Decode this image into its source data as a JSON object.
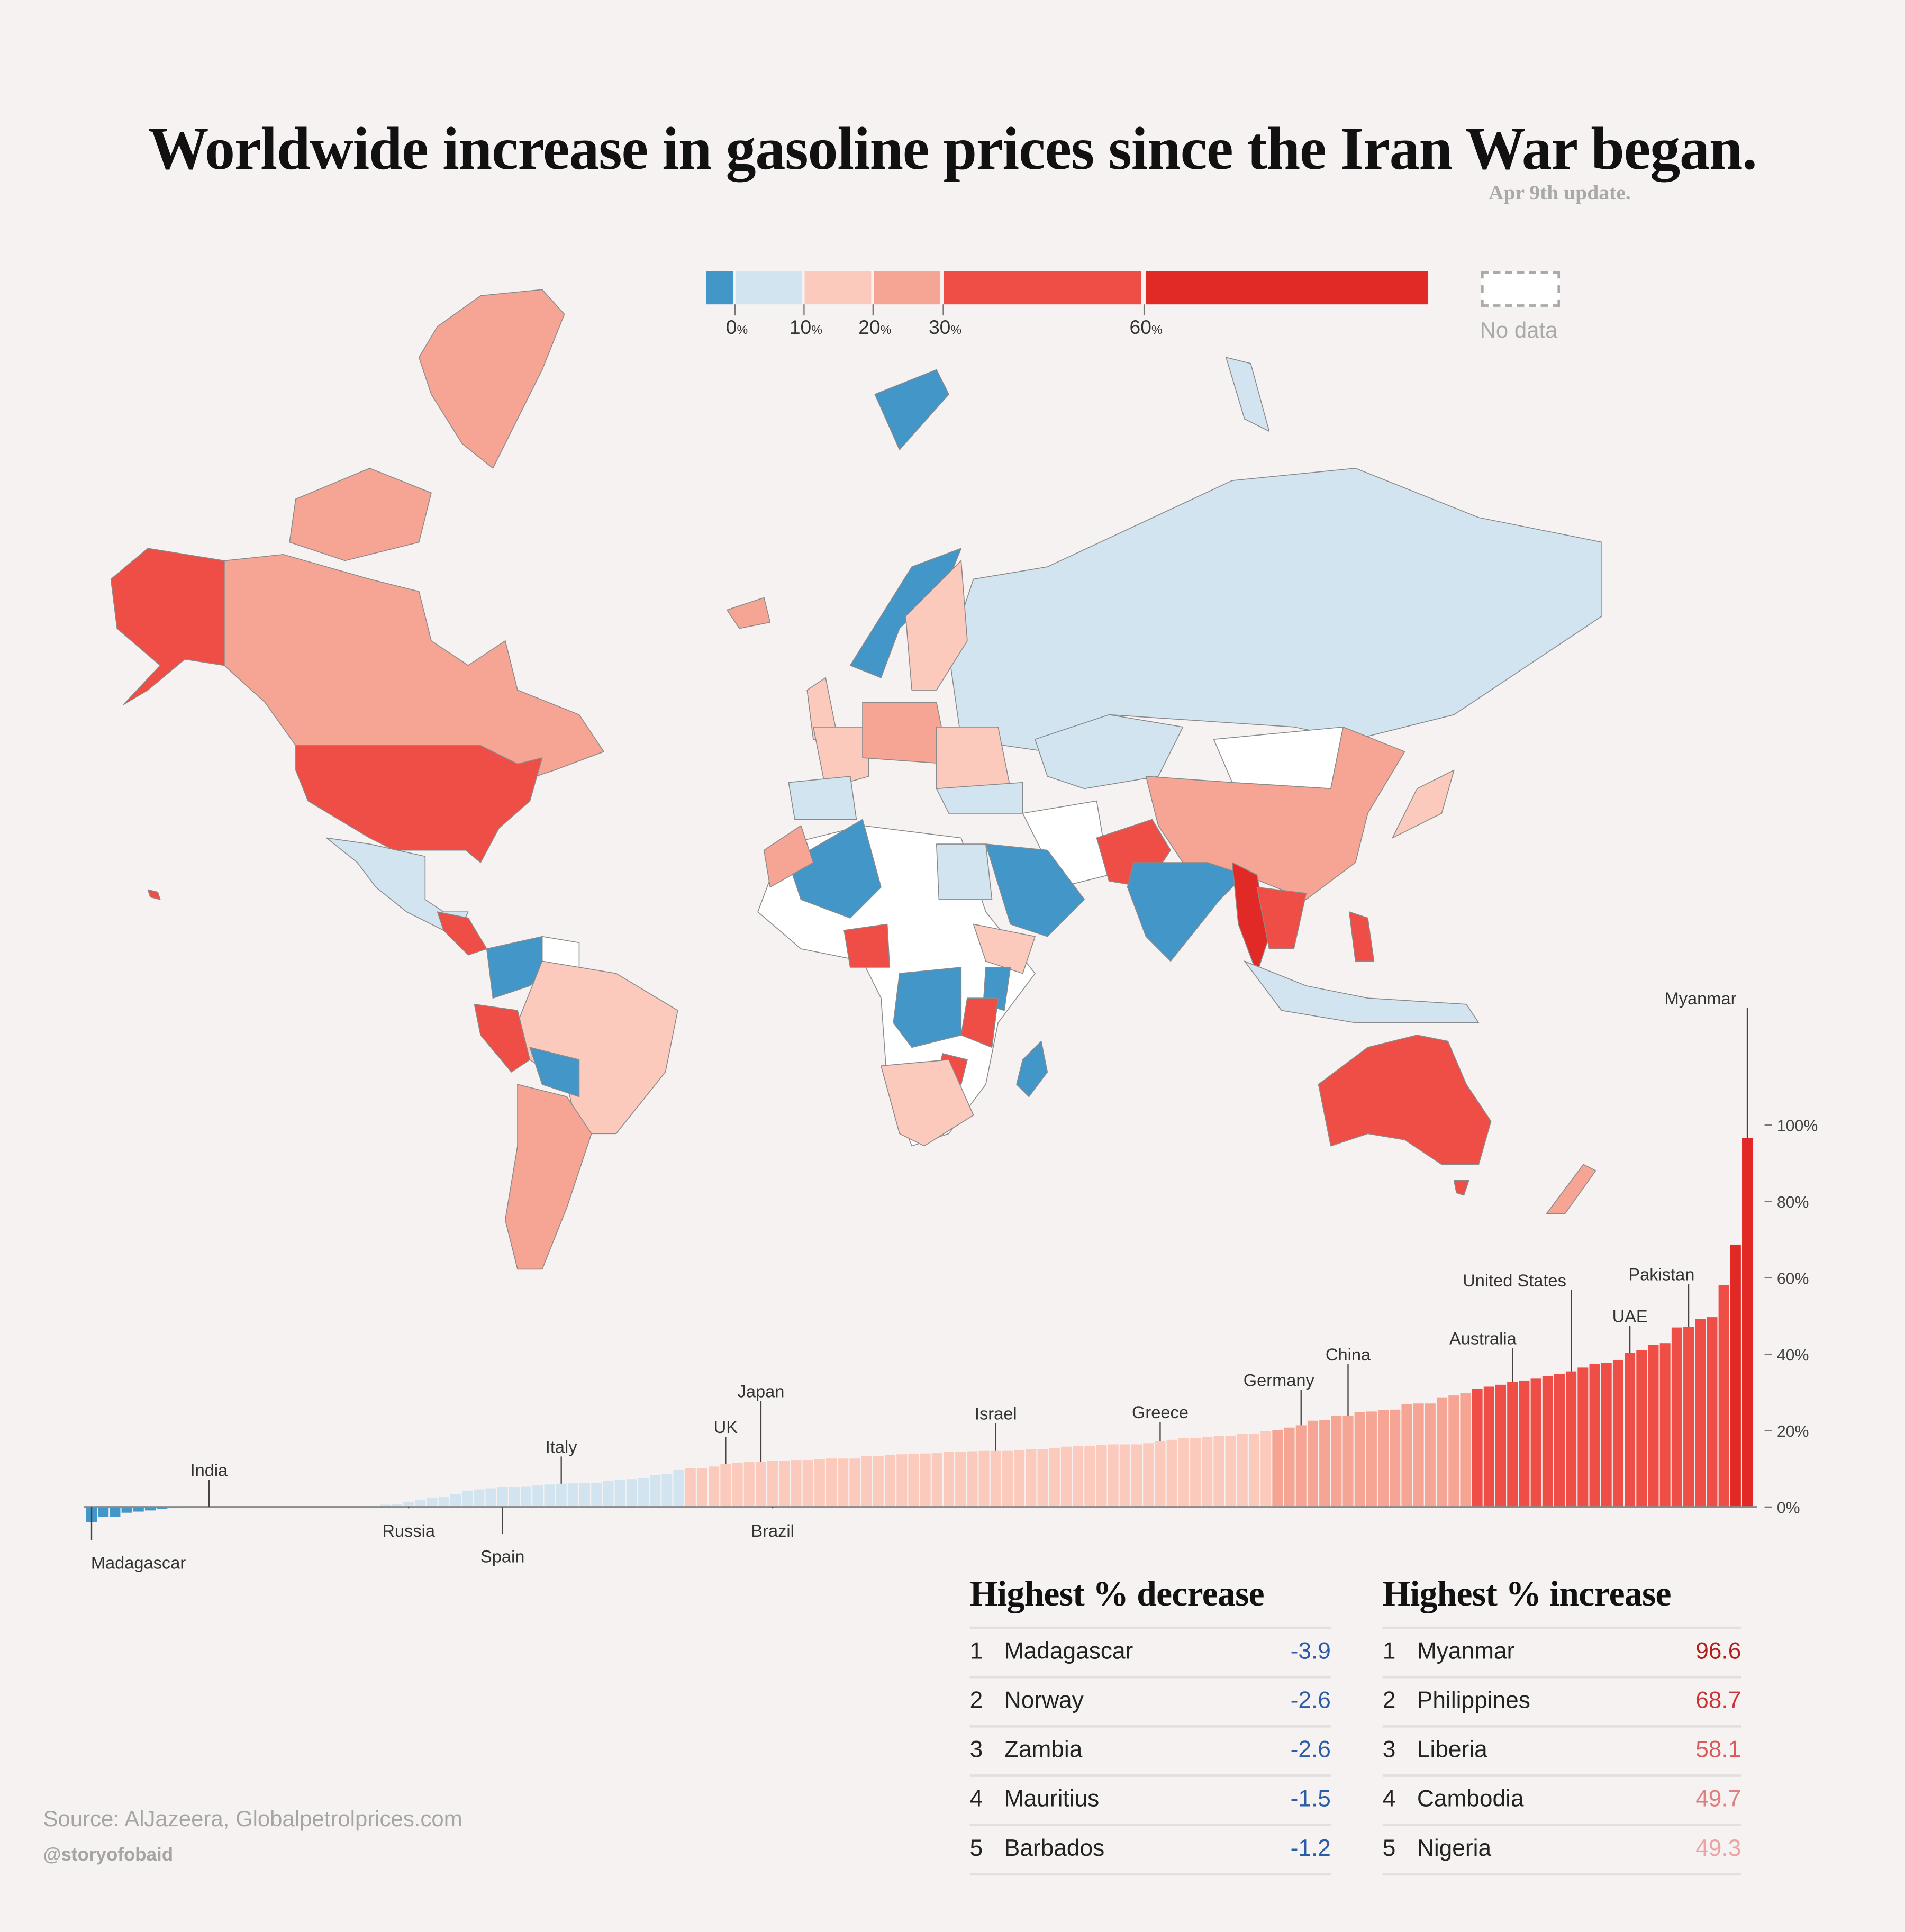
{
  "title": "Worldwide increase in gasoline prices since the Iran War began.",
  "subtitle": "Apr 9th update.",
  "legend": {
    "bins": [
      {
        "color": "#4396c8"
      },
      {
        "color": "#d1e4ef"
      },
      {
        "color": "#fbcabc"
      },
      {
        "color": "#f6a493"
      },
      {
        "color": "#ee4e45"
      },
      {
        "color": "#e12a25"
      }
    ],
    "ticks": [
      "0",
      "10",
      "20",
      "30",
      "60"
    ],
    "unit": "%",
    "no_data_label": "No data",
    "no_data_color": "#ffffff"
  },
  "chart_data": {
    "type": "bar",
    "ylabel": "",
    "ylim": [
      -5,
      100
    ],
    "yticks": [
      "0%",
      "20%",
      "40%",
      "60%",
      "80%",
      "100%"
    ],
    "ytick_values": [
      0,
      20,
      40,
      60,
      80,
      100
    ],
    "grid": false,
    "values": [
      -3.9,
      -2.6,
      -2.6,
      -1.5,
      -1.2,
      -0.9,
      -0.5,
      -0.3,
      0,
      0,
      0,
      0,
      0,
      0,
      0,
      0,
      0,
      0,
      0,
      0,
      0,
      0,
      0,
      0,
      0.1,
      0.6,
      0.8,
      1.4,
      1.9,
      2.4,
      2.6,
      3.4,
      4.3,
      4.6,
      4.9,
      5.1,
      5.1,
      5.3,
      5.8,
      5.9,
      6.1,
      6.2,
      6.3,
      6.3,
      6.9,
      7.2,
      7.3,
      7.6,
      8.3,
      8.7,
      9.7,
      10.1,
      10.1,
      10.6,
      11.3,
      11.6,
      11.8,
      11.8,
      12.1,
      12.1,
      12.3,
      12.3,
      12.5,
      12.7,
      12.7,
      12.7,
      13.3,
      13.4,
      13.7,
      13.8,
      13.9,
      14.0,
      14.1,
      14.4,
      14.4,
      14.6,
      14.7,
      14.7,
      14.7,
      14.9,
      15.1,
      15.1,
      15.5,
      15.8,
      15.9,
      16.0,
      16.3,
      16.4,
      16.4,
      16.4,
      16.7,
      17.3,
      17.6,
      18.0,
      18.1,
      18.4,
      18.6,
      18.6,
      19.1,
      19.2,
      19.8,
      20.2,
      20.8,
      21.4,
      22.6,
      22.8,
      23.9,
      23.9,
      24.9,
      25.0,
      25.4,
      25.5,
      26.9,
      27.1,
      27.1,
      28.7,
      29.2,
      29.8,
      31.0,
      31.5,
      32.0,
      32.7,
      33.1,
      33.6,
      34.3,
      34.8,
      35.5,
      36.5,
      37.4,
      37.8,
      38.5,
      40.4,
      41.1,
      42.4,
      42.9,
      47.0,
      47.1,
      49.3,
      49.7,
      58.1,
      68.7,
      96.6
    ],
    "annotations": [
      {
        "label": "Madagascar",
        "index": 0
      },
      {
        "label": "India",
        "index": 10
      },
      {
        "label": "Russia",
        "index": 27
      },
      {
        "label": "Spain",
        "index": 35
      },
      {
        "label": "Italy",
        "index": 40
      },
      {
        "label": "UK",
        "index": 54
      },
      {
        "label": "Japan",
        "index": 57
      },
      {
        "label": "Brazil",
        "index": 58
      },
      {
        "label": "Israel",
        "index": 77
      },
      {
        "label": "Greece",
        "index": 91
      },
      {
        "label": "Germany",
        "index": 103
      },
      {
        "label": "China",
        "index": 107
      },
      {
        "label": "Australia",
        "index": 121
      },
      {
        "label": "United States",
        "index": 126
      },
      {
        "label": "UAE",
        "index": 131
      },
      {
        "label": "Pakistan",
        "index": 136
      },
      {
        "label": "Myanmar",
        "index": 141
      }
    ]
  },
  "tables": {
    "decrease": {
      "title": "Highest % decrease",
      "value_color": "#2b5ca8",
      "rows": [
        {
          "rank": "1",
          "country": "Madagascar",
          "value": "-3.9"
        },
        {
          "rank": "2",
          "country": "Norway",
          "value": "-2.6"
        },
        {
          "rank": "3",
          "country": "Zambia",
          "value": "-2.6"
        },
        {
          "rank": "4",
          "country": "Mauritius",
          "value": "-1.5"
        },
        {
          "rank": "5",
          "country": "Barbados",
          "value": "-1.2"
        }
      ]
    },
    "increase": {
      "title": "Highest % increase",
      "rows": [
        {
          "rank": "1",
          "country": "Myanmar",
          "value": "96.6",
          "color": "#b71c1c"
        },
        {
          "rank": "2",
          "country": "Philippines",
          "value": "68.7",
          "color": "#cc3535"
        },
        {
          "rank": "3",
          "country": "Liberia",
          "value": "58.1",
          "color": "#d85a5a"
        },
        {
          "rank": "4",
          "country": "Cambodia",
          "value": "49.7",
          "color": "#e07f80"
        },
        {
          "rank": "5",
          "country": "Nigeria",
          "value": "49.3",
          "color": "#eba3a3"
        }
      ]
    }
  },
  "source": "Source: AlJazeera, Globalpetrolprices.com",
  "handle": "@storyofobaid"
}
